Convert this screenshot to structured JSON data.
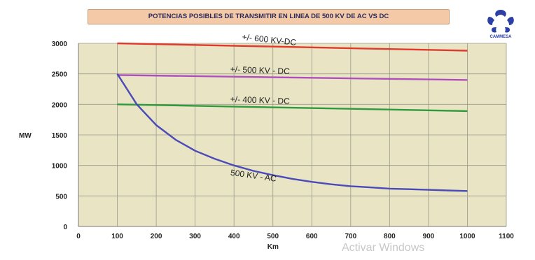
{
  "chart_data": {
    "type": "line",
    "title": "POTENCIAS POSIBLES DE TRANSMITIR EN LINEA DE 500 KV DE AC VS DC",
    "xlabel": "Km",
    "ylabel": "MW",
    "xlim": [
      0,
      1100
    ],
    "ylim": [
      0,
      3000
    ],
    "xticks": [
      0,
      100,
      200,
      300,
      400,
      500,
      600,
      700,
      800,
      900,
      1000,
      1100
    ],
    "yticks": [
      0,
      500,
      1000,
      1500,
      2000,
      2500,
      3000
    ],
    "grid": true,
    "series": [
      {
        "name": "+/- 600 KV-DC",
        "color": "#e03a2e",
        "x": [
          100,
          1000
        ],
        "y": [
          3000,
          2880
        ]
      },
      {
        "name": "+/- 500 KV - DC",
        "color": "#b04ec0",
        "x": [
          100,
          1000
        ],
        "y": [
          2480,
          2400
        ]
      },
      {
        "name": "+/- 400 KV - DC",
        "color": "#2e9a3c",
        "x": [
          100,
          1000
        ],
        "y": [
          2000,
          1890
        ]
      },
      {
        "name": "500 KV - AC",
        "color": "#4a4ab8",
        "x": [
          100,
          150,
          200,
          250,
          300,
          350,
          400,
          450,
          500,
          550,
          600,
          650,
          700,
          750,
          800,
          850,
          900,
          950,
          1000
        ],
        "y": [
          2500,
          2000,
          1660,
          1420,
          1240,
          1110,
          1000,
          910,
          840,
          780,
          730,
          690,
          660,
          640,
          620,
          610,
          600,
          590,
          580
        ]
      }
    ]
  },
  "logo": {
    "text": "CAMMESA",
    "icon": "cammesa-logo-icon",
    "color": "#2b3fa6"
  },
  "watermark": {
    "text": "Activar Windows"
  }
}
